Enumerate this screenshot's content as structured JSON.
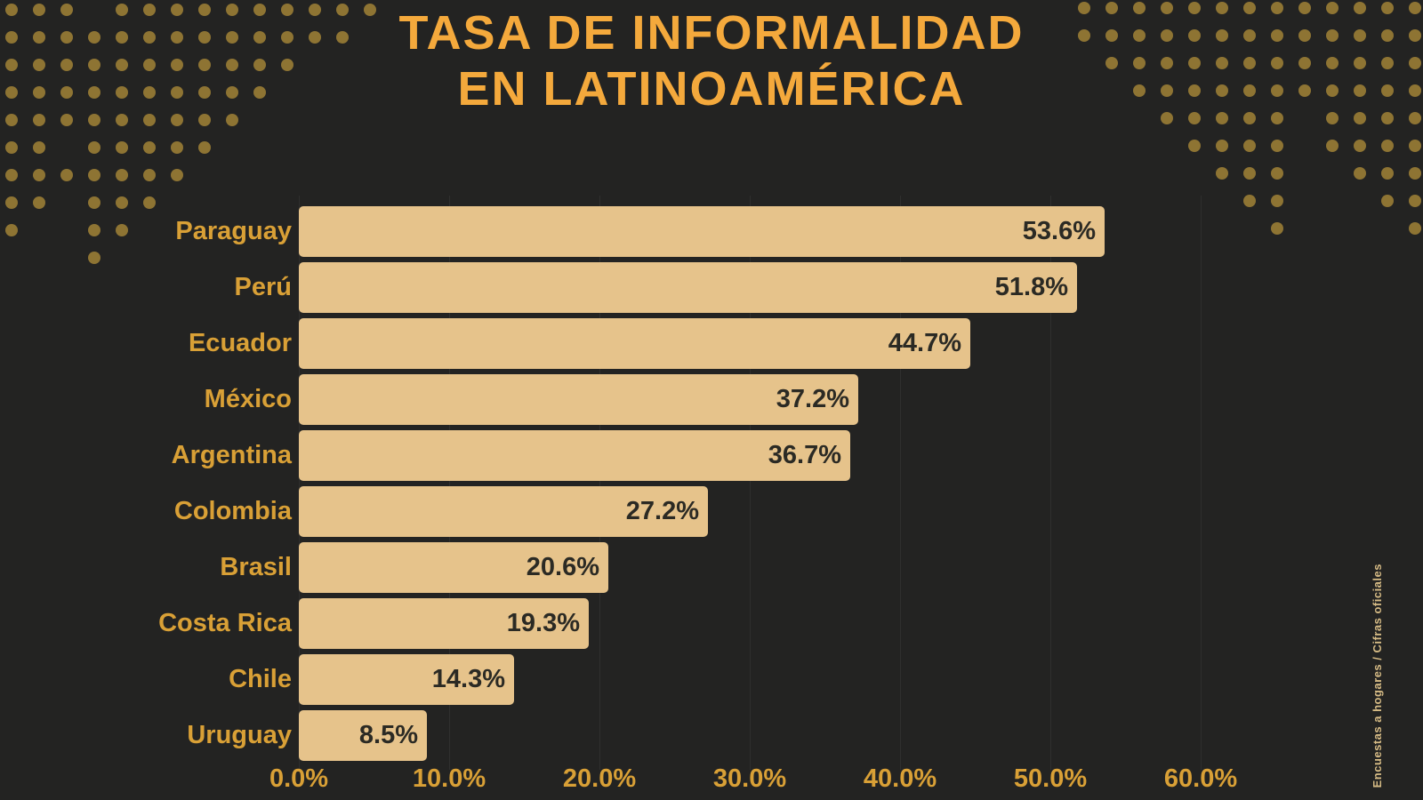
{
  "title": {
    "line1": "TASA DE INFORMALIDAD",
    "line2": "EN LATINOAMÉRICA"
  },
  "source_note": "Encuestas a hogares / Cifras oficiales",
  "chart_data": {
    "type": "bar",
    "orientation": "horizontal",
    "title": "TASA DE INFORMALIDAD EN LATINOAMÉRICA",
    "categories": [
      "Paraguay",
      "Perú",
      "Ecuador",
      "México",
      "Argentina",
      "Colombia",
      "Brasil",
      "Costa Rica",
      "Chile",
      "Uruguay"
    ],
    "values": [
      53.6,
      51.8,
      44.7,
      37.2,
      36.7,
      27.2,
      20.6,
      19.3,
      14.3,
      8.5
    ],
    "value_labels": [
      "53.6%",
      "51.8%",
      "44.7%",
      "37.2%",
      "36.7%",
      "27.2%",
      "20.6%",
      "19.3%",
      "14.3%",
      "8.5%"
    ],
    "x_ticks": [
      0,
      10,
      20,
      30,
      40,
      50,
      60
    ],
    "x_tick_labels": [
      "0.0%",
      "10.0%",
      "20.0%",
      "30.0%",
      "40.0%",
      "50.0%",
      "60.0%"
    ],
    "xlim": [
      0,
      65
    ],
    "grid": "faint-vertical",
    "legend": "none",
    "value_label_position": "inside-end"
  },
  "colors": {
    "background": "#232322",
    "bar": "#E6C38B",
    "title": "#F4A93C",
    "label": "#D9A036",
    "value_text": "#2B2A24",
    "dots": "#8E7433",
    "source_text": "#D6BB85",
    "gridline": "rgba(255,255,255,0.055)"
  }
}
